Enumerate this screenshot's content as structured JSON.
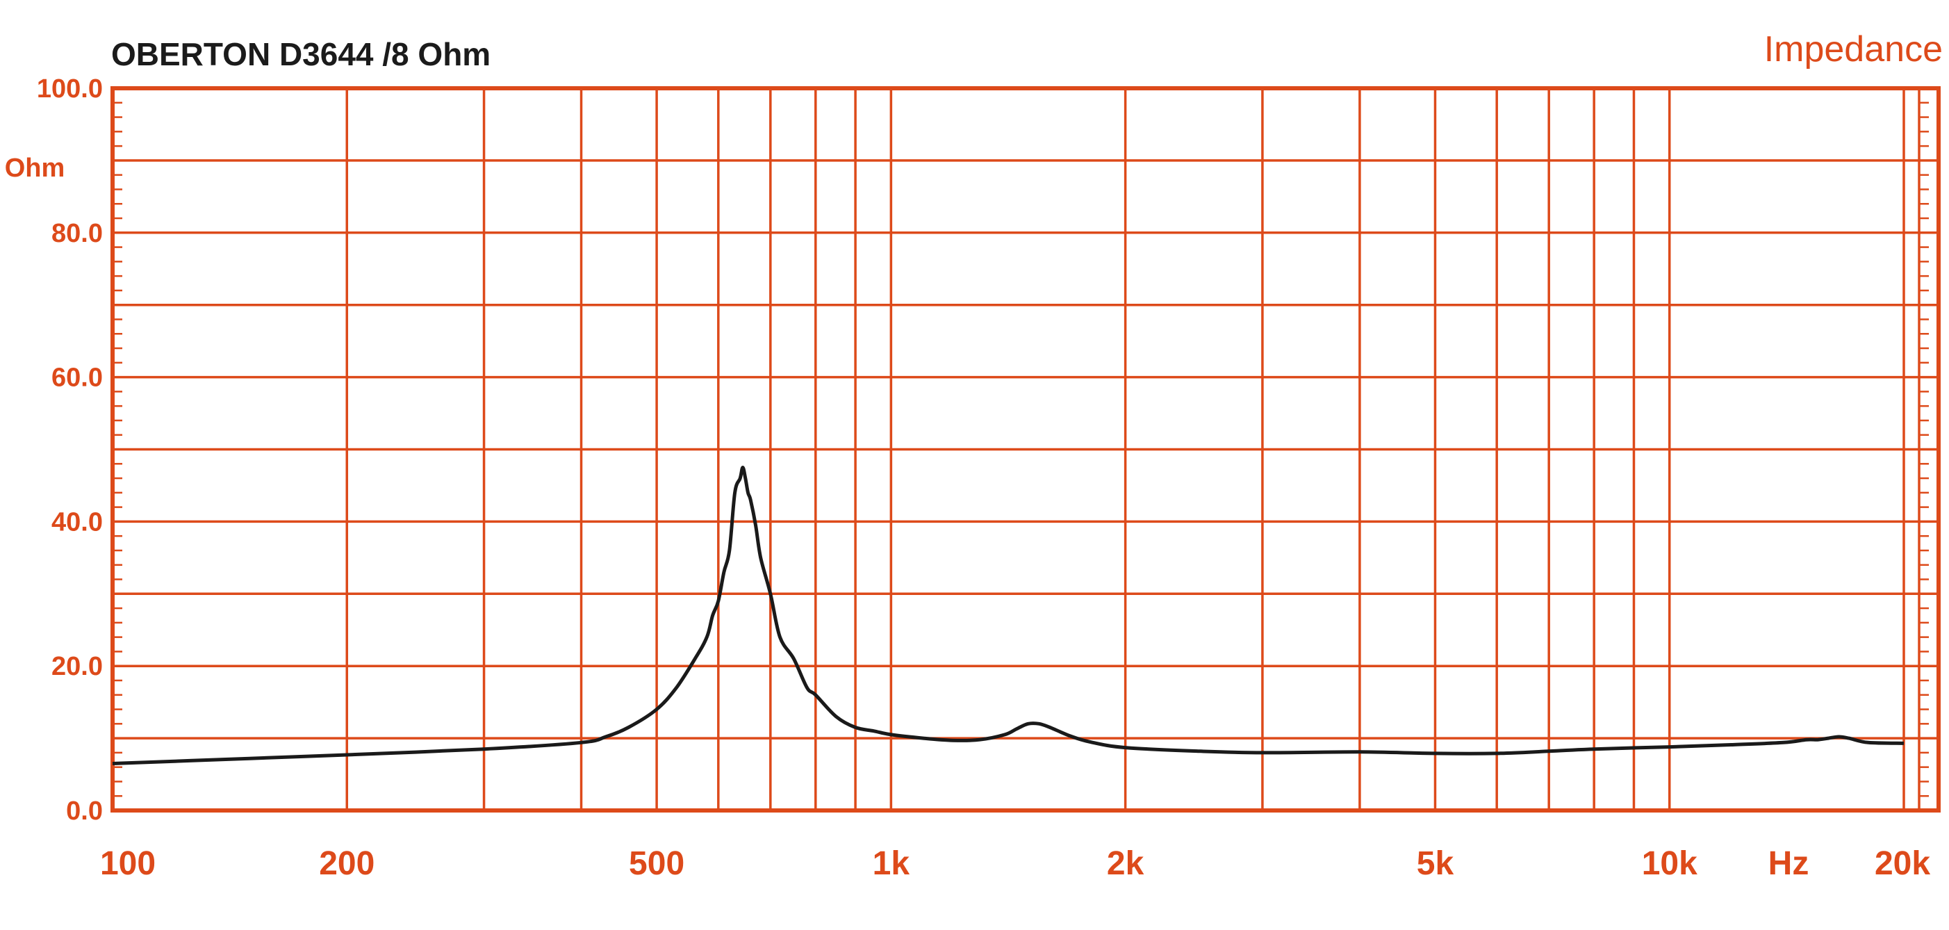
{
  "chart_data": {
    "type": "line",
    "title": "OBERTON  D3644 /8  Ohm",
    "corner_label": "Impedance",
    "y_unit": "Ohm",
    "x_unit": "Hz",
    "x_scale": "log",
    "xlim": [
      100,
      20000
    ],
    "ylim": [
      0,
      100
    ],
    "grid": true,
    "x_tick_labels": [
      {
        "value": 100,
        "label": "100"
      },
      {
        "value": 200,
        "label": "200"
      },
      {
        "value": 500,
        "label": "500"
      },
      {
        "value": 1000,
        "label": "1k"
      },
      {
        "value": 2000,
        "label": "2k"
      },
      {
        "value": 5000,
        "label": "5k"
      },
      {
        "value": 10000,
        "label": "10k"
      },
      {
        "value": 20000,
        "label": "20k"
      }
    ],
    "y_tick_labels": [
      {
        "value": 0,
        "label": "0.0"
      },
      {
        "value": 20,
        "label": "20.0"
      },
      {
        "value": 40,
        "label": "40.0"
      },
      {
        "value": 60,
        "label": "60.0"
      },
      {
        "value": 80,
        "label": "80.0"
      },
      {
        "value": 100,
        "label": "100.0"
      }
    ],
    "x_grid_values": [
      100,
      200,
      300,
      400,
      500,
      600,
      700,
      800,
      900,
      1000,
      2000,
      3000,
      4000,
      5000,
      6000,
      7000,
      8000,
      9000,
      10000,
      20000
    ],
    "y_grid_values": [
      0,
      10,
      20,
      30,
      40,
      50,
      60,
      70,
      80,
      90,
      100
    ],
    "colors": {
      "grid": "#dd4a1a",
      "curve": "#1a1a1a",
      "text": "#dd4a1a",
      "title": "#1b1b1b"
    },
    "series": [
      {
        "x": [
          100,
          150,
          200,
          300,
          400,
          430,
          460,
          500,
          530,
          560,
          580,
          590,
          600,
          610,
          620,
          630,
          640,
          645,
          650,
          655,
          660,
          670,
          680,
          700,
          720,
          750,
          780,
          800,
          850,
          900,
          950,
          1000,
          1100,
          1200,
          1300,
          1400,
          1450,
          1500,
          1550,
          1600,
          1700,
          1800,
          2000,
          2500,
          3000,
          4000,
          5000,
          6000,
          7000,
          8000,
          10000,
          12000,
          14000,
          15000,
          15500,
          16000,
          16500,
          17000,
          18000,
          20000
        ],
        "values": [
          6.5,
          7.2,
          7.7,
          8.5,
          9.4,
          10.2,
          11.5,
          14,
          17,
          21,
          24,
          27,
          29,
          33,
          36,
          44,
          46,
          47.5,
          46,
          44,
          43,
          39.5,
          35,
          30,
          24,
          21,
          17,
          16,
          13,
          11.5,
          11,
          10.5,
          10,
          9.7,
          9.8,
          10.5,
          11.3,
          12,
          12,
          11.5,
          10.3,
          9.5,
          8.7,
          8.2,
          8,
          8.1,
          7.9,
          7.9,
          8.2,
          8.5,
          8.8,
          9.1,
          9.4,
          9.8,
          9.8,
          10,
          10.2,
          10,
          9.4,
          9.3
        ]
      }
    ]
  }
}
